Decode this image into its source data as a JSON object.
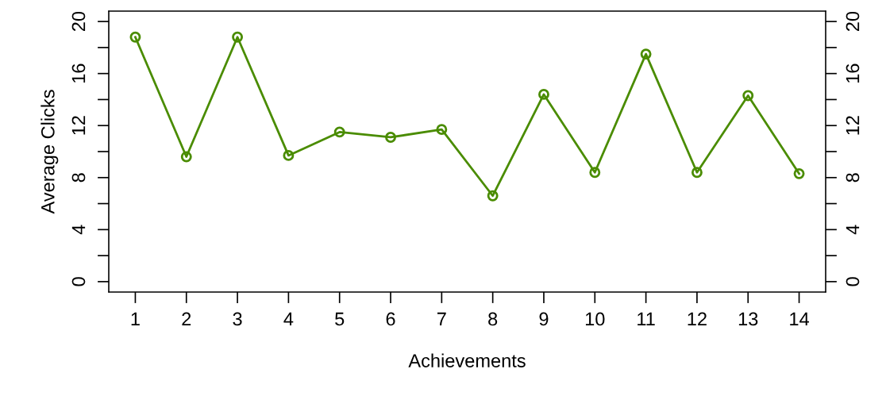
{
  "chart_data": {
    "type": "line",
    "xlabel": "Achievements",
    "ylabel": "Average Clicks",
    "x": [
      1,
      2,
      3,
      4,
      5,
      6,
      7,
      8,
      9,
      10,
      11,
      12,
      13,
      14
    ],
    "series": [
      {
        "color": "#4a8c00",
        "values": [
          18.8,
          9.6,
          18.8,
          9.7,
          11.5,
          11.1,
          11.7,
          6.6,
          14.4,
          8.4,
          17.5,
          8.4,
          14.3,
          8.3
        ]
      }
    ],
    "xlim": [
      0.48,
      14.52
    ],
    "xticks": [
      1,
      2,
      3,
      4,
      5,
      6,
      7,
      8,
      9,
      10,
      11,
      12,
      13,
      14
    ],
    "ylim": [
      -0.8,
      20.8
    ],
    "yticks": [
      0,
      {
        "value": 2,
        "label": null
      },
      4,
      {
        "value": 6,
        "label": null
      },
      8,
      {
        "value": 10,
        "label": null
      },
      12,
      {
        "value": 14,
        "label": null
      },
      16,
      {
        "value": 18,
        "label": null
      },
      20
    ],
    "y2lim": [
      -0.8,
      20.8
    ],
    "y2ticks": [
      0,
      {
        "value": 2,
        "label": null
      },
      4,
      {
        "value": 6,
        "label": null
      },
      8,
      {
        "value": 10,
        "label": null
      },
      12,
      {
        "value": 14,
        "label": null
      },
      16,
      {
        "value": 18,
        "label": null
      },
      20
    ],
    "marker": "circle",
    "line_style": "solid",
    "grid": false,
    "legend": false
  }
}
